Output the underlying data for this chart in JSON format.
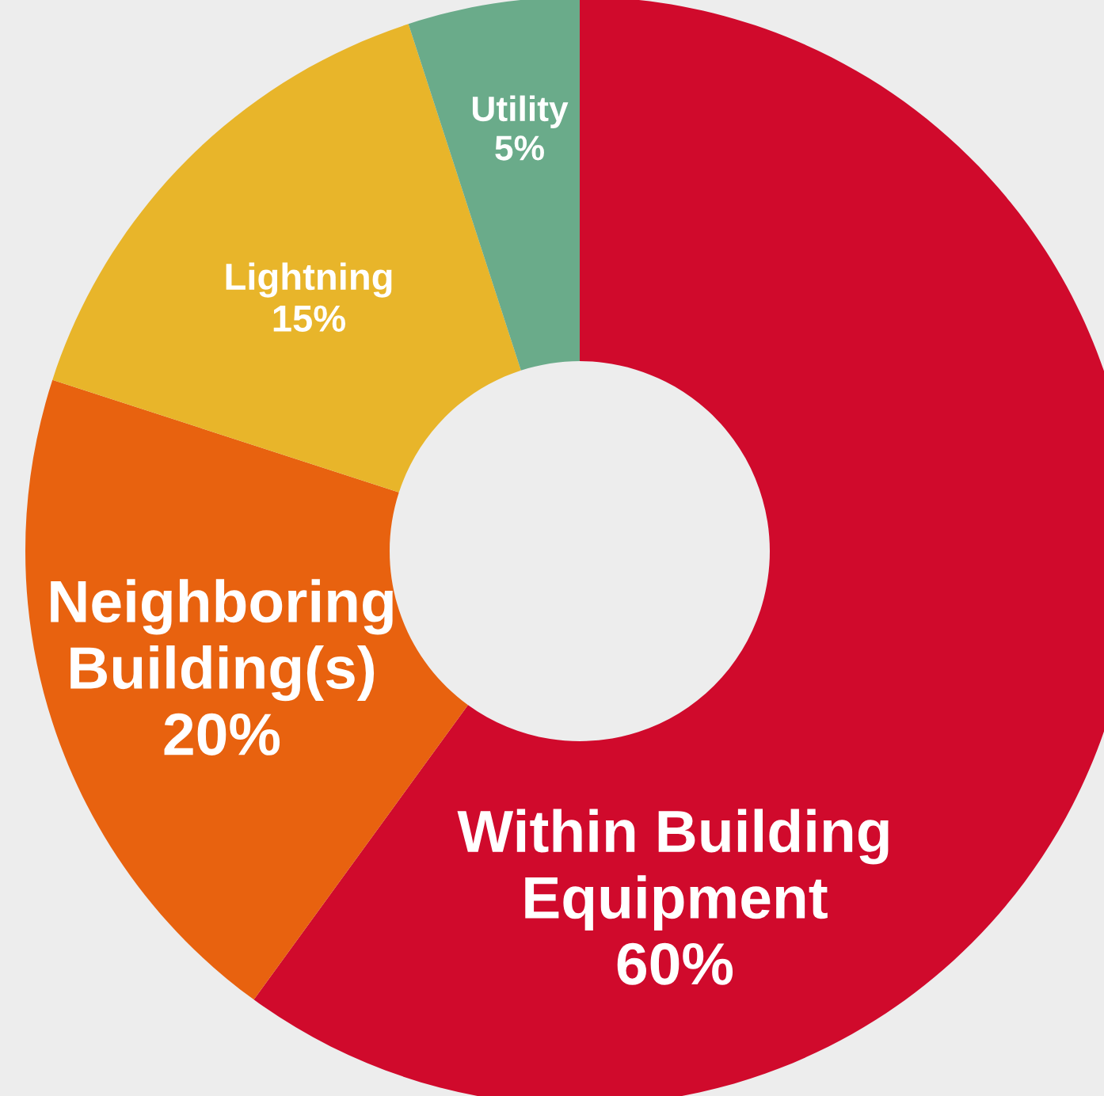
{
  "chart_data": {
    "type": "donut",
    "categories": [
      "Within Building\nEquipment",
      "Neighboring\nBuilding(s)",
      "Lightning",
      "Utility"
    ],
    "values": [
      60,
      20,
      15,
      5
    ],
    "value_labels": [
      "60%",
      "20%",
      "15%",
      "5%"
    ],
    "colors": [
      "#d00a2c",
      "#e8620f",
      "#e8b52a",
      "#6aab8a"
    ],
    "legend": false
  }
}
